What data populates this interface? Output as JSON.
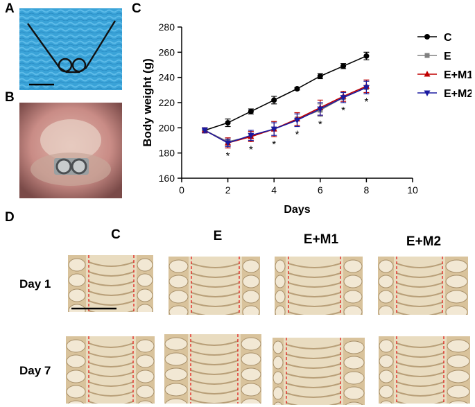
{
  "panels": {
    "a": "A",
    "b": "B",
    "c": "C",
    "d": "D"
  },
  "panel_d": {
    "columns": [
      "C",
      "E",
      "E+M1",
      "E+M2"
    ],
    "rows": [
      "Day 1",
      "Day 7"
    ]
  },
  "colors": {
    "C": "#000000",
    "E": "#808080",
    "E+M1": "#c00000",
    "E+M2": "#1a1aa0",
    "sig": "#000000"
  },
  "chart_data": {
    "type": "line",
    "title": "",
    "xlabel": "Days",
    "ylabel": "Body weight (g)",
    "xlim": [
      0,
      10
    ],
    "ylim": [
      160,
      280
    ],
    "xticks": [
      0,
      2,
      4,
      6,
      8,
      10
    ],
    "yticks": [
      160,
      180,
      200,
      220,
      240,
      260,
      280
    ],
    "x": [
      1,
      2,
      3,
      4,
      5,
      6,
      7,
      8
    ],
    "series": [
      {
        "name": "C",
        "marker": "circle",
        "values": [
          198,
          204,
          213,
          222,
          231,
          241,
          249,
          257
        ],
        "err": [
          2,
          3,
          2,
          3,
          1,
          2,
          2,
          3
        ]
      },
      {
        "name": "E",
        "marker": "square",
        "values": [
          198,
          189,
          193,
          199,
          207,
          214,
          224,
          232
        ],
        "err": [
          2,
          3,
          4,
          6,
          5,
          5,
          4,
          5
        ]
      },
      {
        "name": "E+M1",
        "marker": "triangle-up",
        "values": [
          198,
          188,
          193,
          199,
          207,
          216,
          225,
          233
        ],
        "err": [
          2,
          4,
          4,
          6,
          5,
          6,
          4,
          5
        ]
      },
      {
        "name": "E+M2",
        "marker": "triangle-down",
        "values": [
          198,
          188,
          194,
          199,
          206,
          215,
          224,
          232
        ],
        "err": [
          2,
          3,
          4,
          5,
          5,
          5,
          4,
          5
        ]
      }
    ],
    "significance": {
      "label": "*",
      "x": [
        2,
        3,
        4,
        5,
        6,
        7,
        8
      ]
    }
  }
}
